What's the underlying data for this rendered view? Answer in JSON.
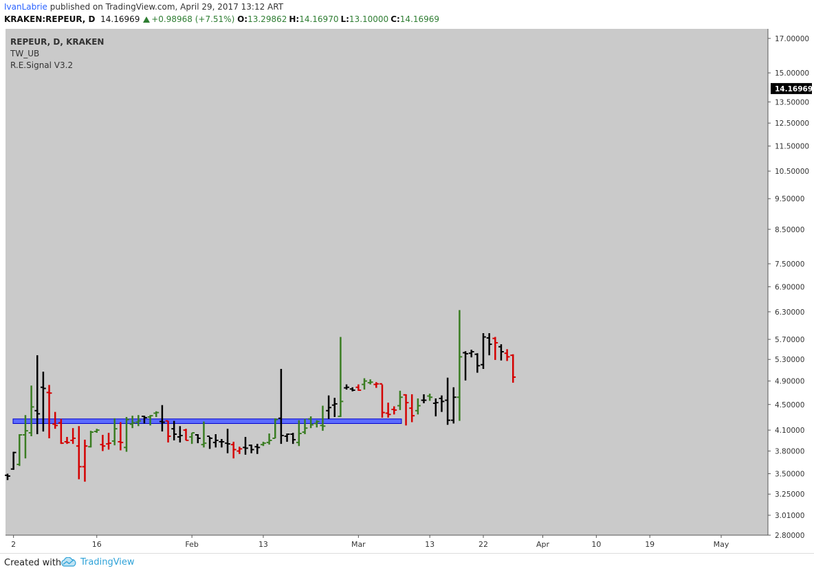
{
  "header": {
    "author": "IvanLabrie",
    "published_text": "published on TradingView.com, April 29, 2017 13:12 ART",
    "symbol_line": "KRAKEN:REPEUR, D",
    "last": "14.16969",
    "change": "+0.98968 (+7.51%)",
    "o_label": "O:",
    "o": "13.29862",
    "h_label": "H:",
    "h": "14.16970",
    "l_label": "L:",
    "l": "13.10000",
    "c_label": "C:",
    "c": "14.16969",
    "change_icon": "triangle-up-icon"
  },
  "legend": {
    "symbol": "REPEUR, D, KRAKEN",
    "indicator1": "TW_UB",
    "indicator2": "R.E.Signal V3.2"
  },
  "footer": {
    "created_with": "Created with",
    "brand": "TradingView",
    "brand_icon": "tradingview-cloud-icon"
  },
  "colors": {
    "background": "#cacaca",
    "up": "#3a7d22",
    "down": "#d40000",
    "neutral": "#000000",
    "support_fill": "#5b6bff",
    "support_stroke": "#0000cc",
    "dot_magenta": "#cc33cc",
    "dot_pink": "#ff3366",
    "dot_green": "#44aa44"
  },
  "chart_data": {
    "type": "ohlc",
    "y_scale": "log",
    "ylim": [
      2.8,
      17.6
    ],
    "y_ticks": [
      "17.00000",
      "15.00000",
      "13.50000",
      "12.50000",
      "11.50000",
      "10.50000",
      "9.50000",
      "8.50000",
      "7.50000",
      "6.90000",
      "6.30000",
      "5.70000",
      "5.30000",
      "4.90000",
      "4.50000",
      "4.10000",
      "3.80000",
      "3.50000",
      "3.25000",
      "3.01000",
      "2.80000"
    ],
    "x_ticks": [
      {
        "label": "2",
        "date": "2017-01-02"
      },
      {
        "label": "16",
        "date": "2017-01-16"
      },
      {
        "label": "Feb",
        "date": "2017-02-01"
      },
      {
        "label": "13",
        "date": "2017-02-13"
      },
      {
        "label": "Mar",
        "date": "2017-03-01"
      },
      {
        "label": "13",
        "date": "2017-03-13"
      },
      {
        "label": "22",
        "date": "2017-03-22"
      },
      {
        "label": "Apr",
        "date": "2017-04-01"
      },
      {
        "label": "10",
        "date": "2017-04-10"
      },
      {
        "label": "19",
        "date": "2017-04-19"
      },
      {
        "label": "May",
        "date": "2017-05-01"
      }
    ],
    "last_price_label": "14.16969",
    "support_zone": {
      "x_start": "2017-01-01",
      "x_end": "2017-03-05",
      "y_low": 4.21,
      "y_high": 4.27
    },
    "bars": [
      [
        "2017-01-01",
        3.48,
        3.47,
        3.42,
        3.5,
        "k"
      ],
      [
        "2017-01-02",
        3.56,
        3.78,
        3.55,
        3.79,
        "k"
      ],
      [
        "2017-01-03",
        3.62,
        4.03,
        3.6,
        4.04,
        "g"
      ],
      [
        "2017-01-04",
        4.03,
        4.09,
        3.7,
        4.33,
        "g"
      ],
      [
        "2017-01-05",
        4.06,
        4.46,
        4.01,
        4.82,
        "g"
      ],
      [
        "2017-01-06",
        4.4,
        4.35,
        4.04,
        5.38,
        "k"
      ],
      [
        "2017-01-07",
        4.79,
        4.77,
        4.08,
        5.07,
        "k"
      ],
      [
        "2017-01-08",
        4.7,
        4.69,
        3.98,
        4.83,
        "r"
      ],
      [
        "2017-01-09",
        4.19,
        4.17,
        4.12,
        4.38,
        "r"
      ],
      [
        "2017-01-10",
        4.21,
        3.91,
        3.9,
        4.27,
        "r"
      ],
      [
        "2017-01-11",
        3.93,
        3.92,
        3.9,
        4.0,
        "r"
      ],
      [
        "2017-01-12",
        3.95,
        3.98,
        3.9,
        4.13,
        "r"
      ],
      [
        "2017-01-13",
        3.87,
        3.59,
        3.43,
        4.16,
        "r"
      ],
      [
        "2017-01-14",
        3.59,
        3.87,
        3.4,
        3.96,
        "r"
      ],
      [
        "2017-01-15",
        3.86,
        4.07,
        3.85,
        4.09,
        "g"
      ],
      [
        "2017-01-16",
        4.08,
        4.1,
        4.06,
        4.12,
        "g"
      ],
      [
        "2017-01-17",
        3.89,
        3.87,
        3.8,
        4.03,
        "r"
      ],
      [
        "2017-01-18",
        3.9,
        3.91,
        3.82,
        4.06,
        "r"
      ],
      [
        "2017-01-19",
        3.94,
        4.12,
        3.88,
        4.28,
        "g"
      ],
      [
        "2017-01-20",
        3.93,
        3.92,
        3.81,
        4.22,
        "r"
      ],
      [
        "2017-01-21",
        3.85,
        4.26,
        3.79,
        4.3,
        "g"
      ],
      [
        "2017-01-22",
        4.19,
        4.21,
        4.13,
        4.32,
        "g"
      ],
      [
        "2017-01-23",
        4.22,
        4.24,
        4.16,
        4.33,
        "g"
      ],
      [
        "2017-01-24",
        4.31,
        4.29,
        4.2,
        4.32,
        "k"
      ],
      [
        "2017-01-25",
        4.3,
        4.32,
        4.17,
        4.33,
        "g"
      ],
      [
        "2017-01-26",
        4.36,
        4.37,
        4.3,
        4.39,
        "g"
      ],
      [
        "2017-01-27",
        4.23,
        4.22,
        4.08,
        4.49,
        "k"
      ],
      [
        "2017-01-28",
        4.24,
        4.01,
        3.92,
        4.24,
        "r"
      ],
      [
        "2017-01-29",
        4.12,
        4.04,
        3.95,
        4.24,
        "k"
      ],
      [
        "2017-01-30",
        4.0,
        4.02,
        3.92,
        4.16,
        "k"
      ],
      [
        "2017-01-31",
        4.1,
        3.95,
        3.95,
        4.12,
        "r"
      ],
      [
        "2017-02-01",
        4.0,
        4.06,
        3.9,
        4.06,
        "g"
      ],
      [
        "2017-02-02",
        4.03,
        3.98,
        3.91,
        4.04,
        "k"
      ],
      [
        "2017-02-03",
        3.89,
        3.91,
        3.85,
        4.23,
        "g"
      ],
      [
        "2017-02-04",
        4.01,
        3.98,
        3.83,
        4.0,
        "k"
      ],
      [
        "2017-02-05",
        3.92,
        3.95,
        3.85,
        4.04,
        "k"
      ],
      [
        "2017-02-06",
        3.93,
        3.93,
        3.85,
        3.97,
        "k"
      ],
      [
        "2017-02-07",
        3.91,
        3.9,
        3.77,
        4.12,
        "k"
      ],
      [
        "2017-02-08",
        3.89,
        3.82,
        3.7,
        3.93,
        "r"
      ],
      [
        "2017-02-09",
        3.8,
        3.83,
        3.76,
        3.86,
        "r"
      ],
      [
        "2017-02-10",
        3.85,
        3.84,
        3.75,
        4.0,
        "k"
      ],
      [
        "2017-02-11",
        3.88,
        3.82,
        3.77,
        3.89,
        "k"
      ],
      [
        "2017-02-12",
        3.86,
        3.85,
        3.76,
        3.9,
        "k"
      ],
      [
        "2017-02-13",
        3.89,
        3.91,
        3.87,
        3.93,
        "g"
      ],
      [
        "2017-02-14",
        3.92,
        3.95,
        3.89,
        4.05,
        "g"
      ],
      [
        "2017-02-15",
        3.98,
        4.26,
        3.98,
        4.28,
        "g"
      ],
      [
        "2017-02-16",
        4.28,
        4.02,
        3.9,
        5.12,
        "k"
      ],
      [
        "2017-02-17",
        4.01,
        4.04,
        3.93,
        4.05,
        "k"
      ],
      [
        "2017-02-18",
        4.04,
        3.96,
        3.9,
        4.06,
        "k"
      ],
      [
        "2017-02-19",
        3.92,
        4.05,
        3.87,
        4.25,
        "g"
      ],
      [
        "2017-02-20",
        4.07,
        4.13,
        4.04,
        4.27,
        "g"
      ],
      [
        "2017-02-21",
        4.27,
        4.18,
        4.13,
        4.31,
        "g"
      ],
      [
        "2017-02-22",
        4.2,
        4.23,
        4.14,
        4.25,
        "g"
      ],
      [
        "2017-02-23",
        4.17,
        4.16,
        4.09,
        4.48,
        "g"
      ],
      [
        "2017-02-24",
        4.4,
        4.45,
        4.27,
        4.65,
        "k"
      ],
      [
        "2017-02-25",
        4.49,
        4.51,
        4.3,
        4.61,
        "k"
      ],
      [
        "2017-02-26",
        4.31,
        4.55,
        4.3,
        5.75,
        "g"
      ],
      [
        "2017-02-27",
        4.78,
        4.79,
        4.75,
        4.84,
        "k"
      ],
      [
        "2017-02-28",
        4.76,
        4.74,
        4.72,
        4.79,
        "k"
      ],
      [
        "2017-03-01",
        4.79,
        4.74,
        4.73,
        4.84,
        "r"
      ],
      [
        "2017-03-02",
        4.84,
        4.9,
        4.75,
        4.95,
        "g"
      ],
      [
        "2017-03-03",
        4.87,
        4.88,
        4.84,
        4.93,
        "g"
      ],
      [
        "2017-03-04",
        4.84,
        4.85,
        4.78,
        4.88,
        "r"
      ],
      [
        "2017-03-05",
        4.85,
        4.37,
        4.29,
        4.84,
        "r"
      ]
    ],
    "bars_right": [
      [
        "2017-03-06",
        4.36,
        4.34,
        4.29,
        4.53,
        "r"
      ],
      [
        "2017-03-07",
        4.42,
        4.41,
        4.34,
        4.47,
        "r"
      ],
      [
        "2017-03-08",
        4.48,
        4.62,
        4.41,
        4.73,
        "g"
      ],
      [
        "2017-03-09",
        4.66,
        4.53,
        4.17,
        4.67,
        "r"
      ],
      [
        "2017-03-10",
        4.44,
        4.32,
        4.22,
        4.67,
        "r"
      ],
      [
        "2017-03-11",
        4.4,
        4.48,
        4.34,
        4.6,
        "g"
      ],
      [
        "2017-03-12",
        4.57,
        4.57,
        4.52,
        4.67,
        "k"
      ],
      [
        "2017-03-13",
        4.64,
        4.62,
        4.56,
        4.68,
        "g"
      ],
      [
        "2017-03-14",
        4.52,
        4.53,
        4.31,
        4.6,
        "k"
      ],
      [
        "2017-03-15",
        4.6,
        4.55,
        4.38,
        4.65,
        "k"
      ],
      [
        "2017-03-16",
        4.57,
        4.25,
        4.18,
        4.96,
        "k"
      ],
      [
        "2017-03-17",
        4.25,
        4.62,
        4.2,
        4.79,
        "k"
      ],
      [
        "2017-03-18",
        4.62,
        5.35,
        4.24,
        6.34,
        "g"
      ],
      [
        "2017-03-19",
        5.43,
        5.41,
        4.91,
        5.46,
        "k"
      ],
      [
        "2017-03-20",
        5.42,
        5.45,
        5.34,
        5.49,
        "k"
      ],
      [
        "2017-03-21",
        5.4,
        5.18,
        5.05,
        5.42,
        "k"
      ],
      [
        "2017-03-22",
        5.2,
        5.75,
        5.12,
        5.83,
        "k"
      ],
      [
        "2017-03-23",
        5.73,
        5.6,
        5.38,
        5.83,
        "k"
      ],
      [
        "2017-03-24",
        5.72,
        5.63,
        5.29,
        5.75,
        "r"
      ],
      [
        "2017-03-25",
        5.55,
        5.45,
        5.28,
        5.6,
        "k"
      ],
      [
        "2017-03-26",
        5.42,
        5.35,
        5.27,
        5.5,
        "r"
      ],
      [
        "2017-03-27",
        5.38,
        4.97,
        4.87,
        5.4,
        "r"
      ]
    ]
  }
}
